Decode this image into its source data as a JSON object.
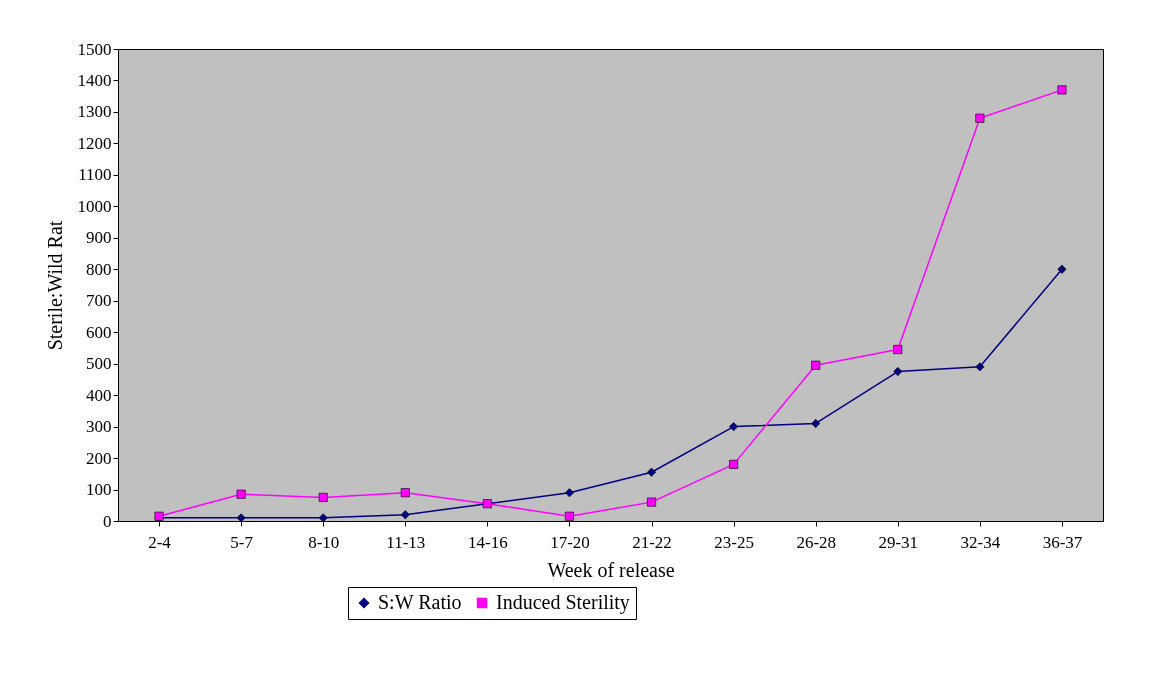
{
  "chart_data": {
    "type": "line",
    "xlabel": "Week of release",
    "ylabel": "Sterile:Wild Rat",
    "categories": [
      "2-4",
      "5-7",
      "8-10",
      "11-13",
      "14-16",
      "17-20",
      "21-22",
      "23-25",
      "26-28",
      "29-31",
      "32-34",
      "36-37"
    ],
    "series": [
      {
        "name": "S:W Ratio",
        "color": "#000080",
        "marker": "diamond",
        "values": [
          10,
          10,
          10,
          20,
          55,
          90,
          155,
          300,
          310,
          475,
          490,
          800
        ]
      },
      {
        "name": "Induced Sterility",
        "color": "#ff00ff",
        "marker": "square",
        "values": [
          15,
          85,
          75,
          90,
          55,
          15,
          60,
          180,
          495,
          545,
          1280,
          1370
        ]
      }
    ],
    "ylim": [
      0,
      1500
    ],
    "yticks": [
      0,
      100,
      200,
      300,
      400,
      500,
      600,
      700,
      800,
      900,
      1000,
      1100,
      1200,
      1300,
      1400,
      1500
    ],
    "grid": false,
    "legend": "bottom"
  }
}
